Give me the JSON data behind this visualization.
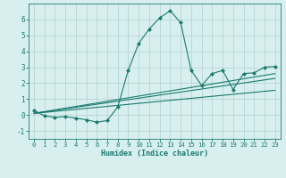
{
  "xlabel": "Humidex (Indice chaleur)",
  "background_color": "#d8efef",
  "line_color": "#1a7a6e",
  "grid_color": "#b8d4d4",
  "xlim": [
    -0.5,
    23.5
  ],
  "ylim": [
    -1.5,
    7.0
  ],
  "yticks": [
    -1,
    0,
    1,
    2,
    3,
    4,
    5,
    6
  ],
  "xticks": [
    0,
    1,
    2,
    3,
    4,
    5,
    6,
    7,
    8,
    9,
    10,
    11,
    12,
    13,
    14,
    15,
    16,
    17,
    18,
    19,
    20,
    21,
    22,
    23
  ],
  "main_x": [
    0,
    1,
    2,
    3,
    4,
    5,
    6,
    7,
    8,
    9,
    10,
    11,
    12,
    13,
    14,
    15,
    16,
    17,
    18,
    19,
    20,
    21,
    22,
    23
  ],
  "main_y": [
    0.3,
    -0.05,
    -0.15,
    -0.1,
    -0.2,
    -0.3,
    -0.45,
    -0.35,
    0.5,
    2.8,
    4.5,
    5.4,
    6.1,
    6.55,
    5.8,
    2.8,
    1.85,
    2.6,
    2.8,
    1.6,
    2.6,
    2.65,
    3.0,
    3.05
  ],
  "trend1_x": [
    0,
    23
  ],
  "trend1_y": [
    0.1,
    2.3
  ],
  "trend2_x": [
    0,
    23
  ],
  "trend2_y": [
    0.1,
    2.6
  ],
  "trend3_x": [
    0,
    23
  ],
  "trend3_y": [
    0.1,
    1.55
  ]
}
